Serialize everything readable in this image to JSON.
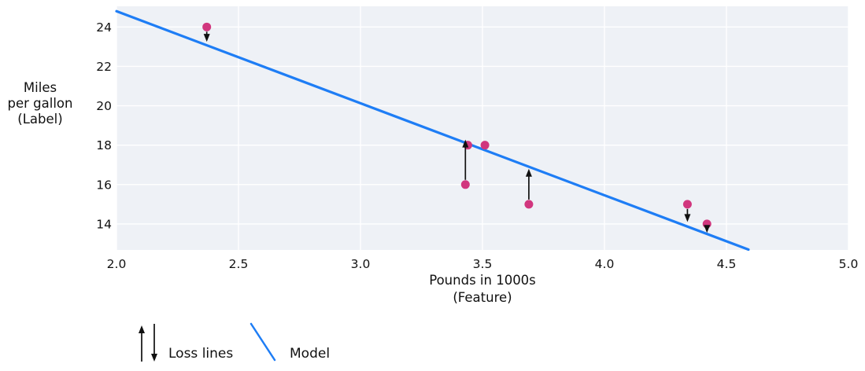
{
  "figure": {
    "background": "#ffffff",
    "plot_background": "#eef1f6",
    "grid_color": "#ffffff",
    "text_color": "#111111"
  },
  "chart_data": {
    "type": "scatter",
    "title": "",
    "xlabel_lines": [
      "Pounds in 1000s",
      "(Feature)"
    ],
    "ylabel_lines": [
      "Miles",
      "per gallon",
      "(Label)"
    ],
    "xlim": [
      2.0,
      5.0
    ],
    "ylim": [
      12.68,
      25.05
    ],
    "grid": true,
    "x_tick_values": [
      2.0,
      2.5,
      3.0,
      3.5,
      4.0,
      4.5,
      5.0
    ],
    "x_tick_labels": [
      "2.0",
      "2.5",
      "3.0",
      "3.5",
      "4.0",
      "4.5",
      "5.0"
    ],
    "y_tick_values": [
      14,
      16,
      18,
      20,
      22,
      24
    ],
    "y_tick_labels": [
      "14",
      "16",
      "18",
      "20",
      "22",
      "24"
    ],
    "points": [
      {
        "x": 2.37,
        "y": 24
      },
      {
        "x": 3.44,
        "y": 18
      },
      {
        "x": 3.51,
        "y": 18
      },
      {
        "x": 3.43,
        "y": 16
      },
      {
        "x": 3.69,
        "y": 15
      },
      {
        "x": 4.34,
        "y": 15
      },
      {
        "x": 4.42,
        "y": 14
      }
    ],
    "model_line": {
      "x1": 2.0,
      "y1": 24.8,
      "x2": 4.59,
      "y2": 12.7
    },
    "loss_arrows": [
      {
        "x": 2.37,
        "from_y": 24.0,
        "to_y": 23.25,
        "direction": "down"
      },
      {
        "x": 3.43,
        "from_y": 16.0,
        "to_y": 18.28,
        "direction": "up"
      },
      {
        "x": 3.69,
        "from_y": 15.0,
        "to_y": 16.8,
        "direction": "up"
      },
      {
        "x": 4.34,
        "from_y": 15.0,
        "to_y": 14.1,
        "direction": "down"
      },
      {
        "x": 4.42,
        "from_y": 14.0,
        "to_y": 13.55,
        "direction": "down"
      }
    ],
    "colors": {
      "model_line": "#1e7df5",
      "point": "#d1367e",
      "loss_arrow": "#111111"
    }
  },
  "legend": {
    "loss_label": "Loss lines",
    "model_label": "Model"
  }
}
